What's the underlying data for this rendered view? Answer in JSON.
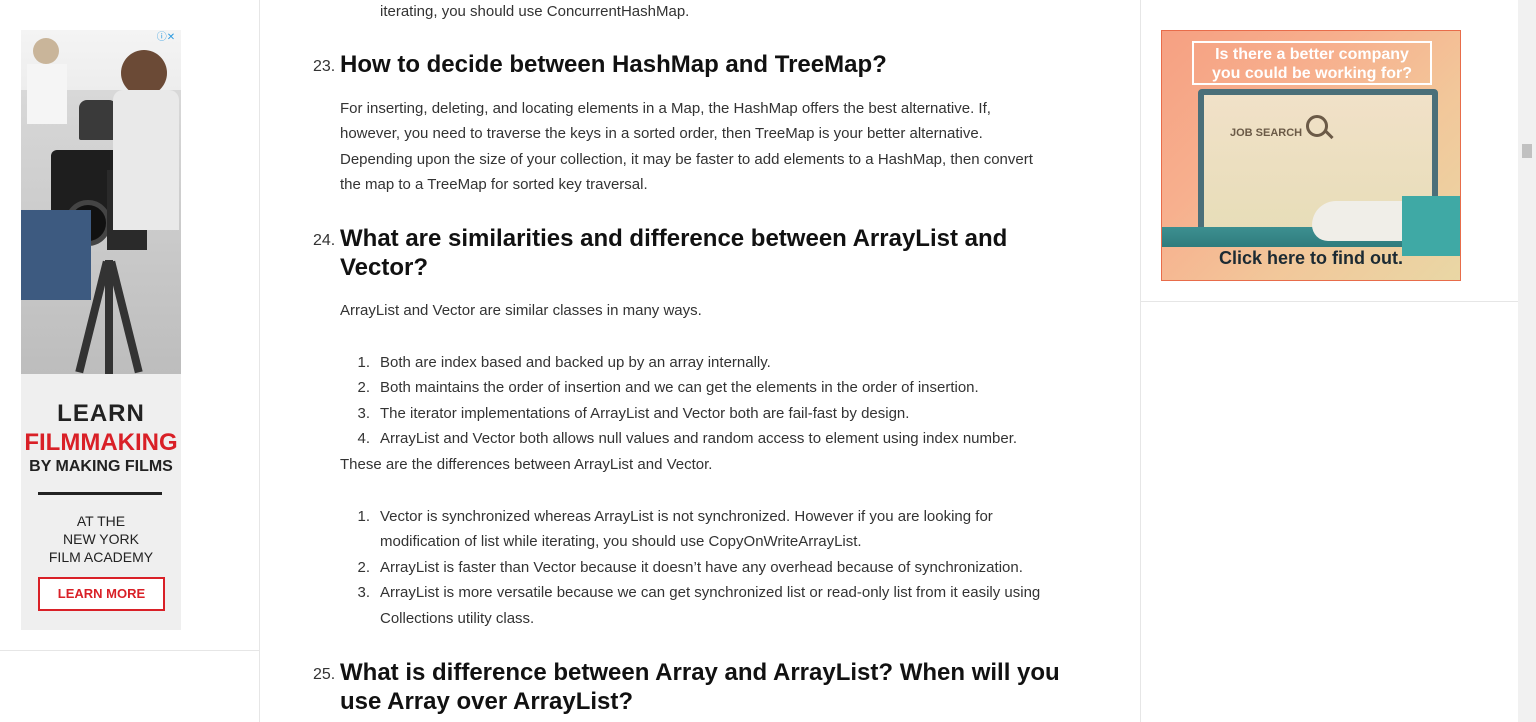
{
  "left_ad": {
    "ad_choice": "ⓘ✕",
    "learn": "LEARN",
    "filmmaking": "FILMMAKING",
    "by_making": "BY MAKING FILMS",
    "at_the": "AT THE",
    "new_york": "NEW YORK",
    "academy": "FILM ACADEMY",
    "learn_more": "LEARN MORE"
  },
  "right_ad": {
    "headline_1": "Is there a better company",
    "headline_2": "you could be working for?",
    "job_search": "JOB SEARCH",
    "cta": "Click here to find out."
  },
  "article": {
    "prev_tail": "iterating, you should use ConcurrentHashMap.",
    "q23": {
      "num": "23.",
      "title": "How to decide between HashMap and TreeMap?",
      "lines": [
        "For inserting, deleting, and locating elements in a Map, the HashMap offers the best alternative. If,",
        "however, you need to traverse the keys in a sorted order, then TreeMap is your better alternative.",
        "Depending upon the size of your collection, it may be faster to add elements to a HashMap, then convert",
        "the map to a TreeMap for sorted key traversal."
      ]
    },
    "q24": {
      "num": "24.",
      "title_1": "What are similarities and difference between ArrayList and",
      "title_2": "Vector?",
      "intro": "ArrayList and Vector are similar classes in many ways.",
      "similarities": [
        "Both are index based and backed up by an array internally.",
        "Both maintains the order of insertion and we can get the elements in the order of insertion.",
        "The iterator implementations of ArrayList and Vector both are fail-fast by design.",
        "ArrayList and Vector both allows null values and random access to element using index number."
      ],
      "diff_intro": "These are the differences between ArrayList and Vector.",
      "differences": [
        {
          "l1": "Vector is synchronized whereas ArrayList is not synchronized. However if you are looking for",
          "l2": "modification of list while iterating, you should use CopyOnWriteArrayList."
        },
        {
          "l1": "ArrayList is faster than Vector because it doesn’t have any overhead because of synchronization.",
          "l2": ""
        },
        {
          "l1": "ArrayList is more versatile because we can get synchronized list or read-only list from it easily using",
          "l2": "Collections utility class."
        }
      ]
    },
    "q25": {
      "num": "25.",
      "title_1": "What is difference between Array and ArrayList? When will you",
      "title_2": "use Array over ArrayList?"
    }
  }
}
